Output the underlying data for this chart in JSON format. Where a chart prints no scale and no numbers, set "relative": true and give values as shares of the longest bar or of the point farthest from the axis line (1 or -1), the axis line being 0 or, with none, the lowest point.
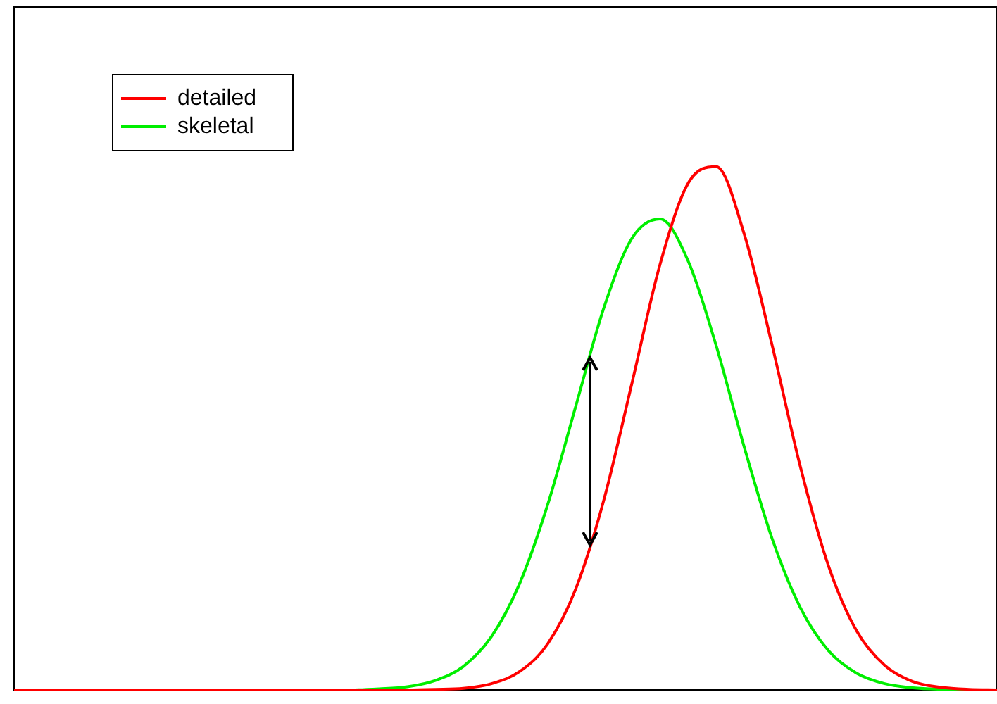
{
  "chart_data": {
    "type": "line",
    "relative": true,
    "legend": "top left",
    "marker": "none",
    "line_style": "solid",
    "categories": [
      null,
      null,
      null,
      null,
      null,
      null,
      null,
      null,
      null,
      null,
      null,
      null,
      null,
      null,
      null,
      null,
      null,
      null,
      null,
      null,
      null,
      null,
      null,
      null,
      null,
      null,
      null,
      null,
      null,
      null,
      null,
      null,
      null,
      null,
      null,
      null
    ],
    "series": [
      {
        "name": "detailed",
        "color": "#ff0000",
        "values": [
          0,
          0,
          0,
          0,
          0,
          0,
          0,
          0,
          0,
          0,
          0,
          0,
          0,
          0,
          0,
          0.001,
          0.003,
          0.012,
          0.035,
          0.088,
          0.193,
          0.363,
          0.586,
          0.813,
          0.968,
          1,
          0.871,
          0.657,
          0.426,
          0.237,
          0.113,
          0.047,
          0.016,
          0.005,
          0.001,
          0
        ]
      },
      {
        "name": "skeletal",
        "color": "#00ee00",
        "values": [
          null,
          null,
          null,
          null,
          null,
          null,
          null,
          null,
          null,
          null,
          null,
          0,
          0,
          0.002,
          0.006,
          0.018,
          0.045,
          0.102,
          0.203,
          0.354,
          0.542,
          0.73,
          0.863,
          0.9,
          0.82,
          0.658,
          0.464,
          0.288,
          0.157,
          0.075,
          0.032,
          0.012,
          0.004,
          0.001,
          0,
          0
        ]
      }
    ]
  }
}
